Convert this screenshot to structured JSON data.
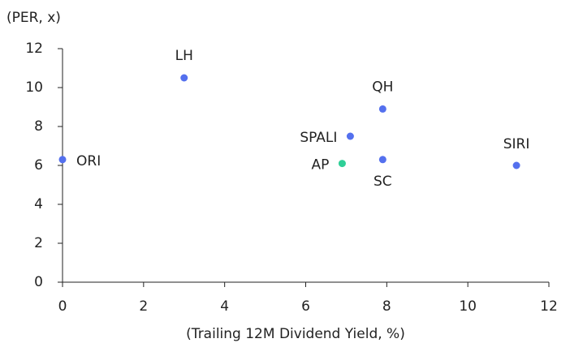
{
  "chart_data": {
    "type": "scatter",
    "y_label": "(PER, x)",
    "x_label": "(Trailing 12M Dividend Yield, %)",
    "labels": [
      "ORI",
      "LH",
      "QH",
      "SPALI",
      "SC",
      "AP",
      "SIRI"
    ],
    "x": [
      0,
      3.0,
      7.9,
      7.1,
      7.9,
      6.9,
      11.2
    ],
    "values": [
      6.3,
      10.5,
      8.9,
      7.5,
      6.3,
      6.1,
      6.0
    ],
    "colors": [
      "#5470ee",
      "#5470ee",
      "#5470ee",
      "#5470ee",
      "#5470ee",
      "#2fcf97",
      "#5470ee"
    ],
    "xlim": [
      0,
      12
    ],
    "xticks": [
      0,
      2,
      4,
      6,
      8,
      10,
      12
    ],
    "ylim": [
      0,
      12
    ],
    "yticks": [
      0,
      2,
      4,
      6,
      8,
      10,
      12
    ],
    "grid": false
  }
}
